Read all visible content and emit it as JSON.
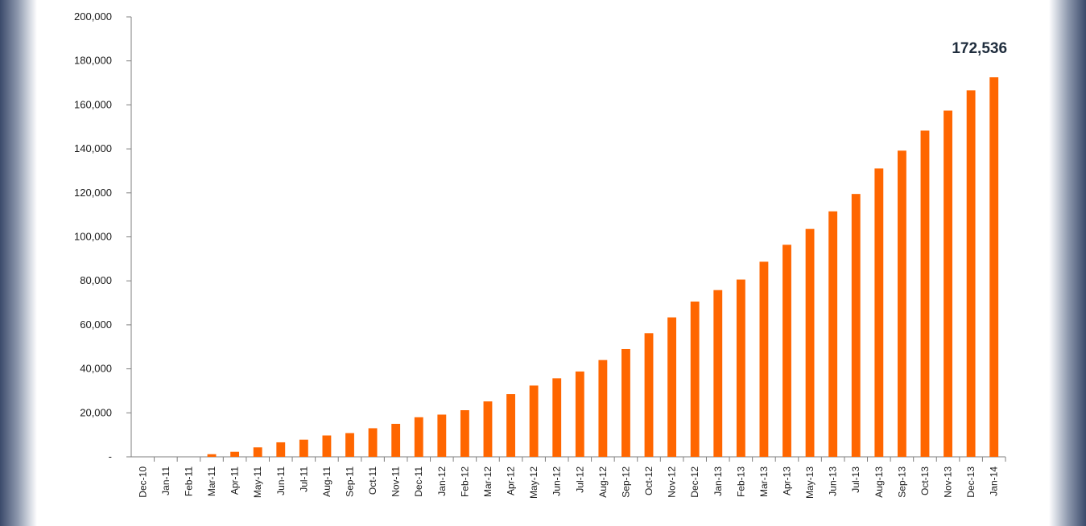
{
  "chart_data": {
    "type": "bar",
    "categories": [
      "Dec-10",
      "Jan-11",
      "Feb-11",
      "Mar-11",
      "Apr-11",
      "May-11",
      "Jun-11",
      "Jul-11",
      "Aug-11",
      "Sep-11",
      "Oct-11",
      "Nov-11",
      "Dec-11",
      "Jan-12",
      "Feb-12",
      "Mar-12",
      "Apr-12",
      "May-12",
      "Jun-12",
      "Jul-12",
      "Aug-12",
      "Sep-12",
      "Oct-12",
      "Nov-12",
      "Dec-12",
      "Jan-13",
      "Feb-13",
      "Mar-13",
      "Apr-13",
      "May-13",
      "Jun-13",
      "Jul-13",
      "Aug-13",
      "Sep-13",
      "Oct-13",
      "Nov-13",
      "Dec-13",
      "Jan-14"
    ],
    "values": [
      0,
      0,
      0,
      1200,
      2300,
      4300,
      6600,
      7800,
      9700,
      10800,
      13000,
      15000,
      18000,
      19200,
      21200,
      25200,
      28500,
      32400,
      35700,
      38800,
      44000,
      49000,
      56200,
      63400,
      70600,
      75800,
      80600,
      88700,
      96400,
      103600,
      111600,
      119500,
      131100,
      139200,
      148300,
      157400,
      166600,
      172536
    ],
    "ylim": [
      0,
      200000
    ],
    "yticks": [
      "-",
      "20,000",
      "40,000",
      "60,000",
      "80,000",
      "100,000",
      "120,000",
      "140,000",
      "160,000",
      "180,000",
      "200,000"
    ],
    "annotation": "172,536",
    "title": "",
    "xlabel": "",
    "ylabel": "",
    "bar_color": "#ff6600",
    "grid": false
  }
}
